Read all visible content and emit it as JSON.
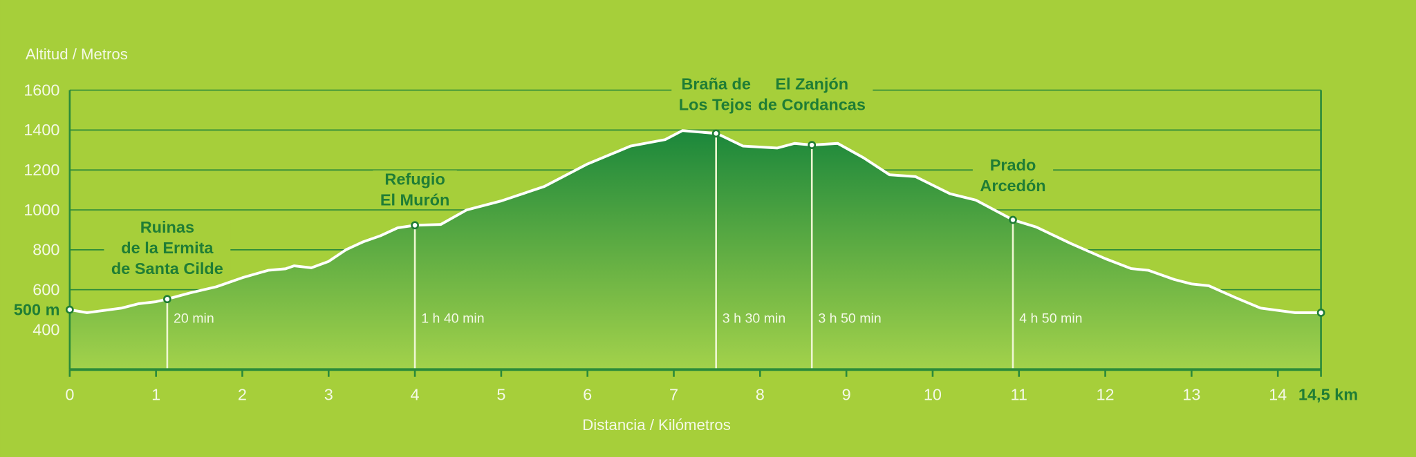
{
  "chart_data": {
    "type": "area",
    "y_axis_title": "Altitud / Metros",
    "x_axis_title": "Distancia / Kilómetros",
    "x": [
      0,
      0.2,
      0.6,
      0.8,
      1.0,
      1.13,
      1.4,
      1.7,
      2.0,
      2.3,
      2.5,
      2.6,
      2.8,
      3.0,
      3.2,
      3.4,
      3.6,
      3.8,
      4.0,
      4.3,
      4.6,
      5.0,
      5.5,
      6.0,
      6.3,
      6.5,
      6.9,
      7.1,
      7.5,
      7.8,
      8.2,
      8.4,
      8.6,
      8.9,
      9.2,
      9.5,
      9.8,
      10.2,
      10.5,
      10.93,
      11.2,
      11.6,
      12.0,
      12.3,
      12.5,
      12.8,
      13.0,
      13.2,
      13.5,
      13.8,
      14.2,
      14.5
    ],
    "values": [
      500,
      485,
      508,
      530,
      540,
      553,
      585,
      615,
      660,
      697,
      705,
      720,
      710,
      742,
      800,
      840,
      870,
      910,
      923,
      927,
      1000,
      1045,
      1117,
      1230,
      1284,
      1320,
      1352,
      1397,
      1383,
      1320,
      1310,
      1333,
      1325,
      1333,
      1261,
      1176,
      1167,
      1081,
      1049,
      950,
      914,
      832,
      756,
      706,
      697,
      651,
      629,
      620,
      562,
      508,
      485,
      485
    ],
    "line_color": "#ffffff",
    "fill_top_color": "#1b873b",
    "fill_bottom_color": "#a3d24b",
    "xlim": [
      0,
      14.5
    ],
    "xticks": [
      0,
      1,
      2,
      3,
      4,
      5,
      6,
      7,
      8,
      9,
      10,
      11,
      12,
      13,
      14,
      {
        "value": 14.5,
        "label": "14,5 km"
      }
    ],
    "ylim": [
      200,
      1600
    ],
    "yticks": [
      400,
      {
        "value": 500,
        "label": "500 m"
      },
      600,
      800,
      1000,
      1200,
      1400,
      1600
    ],
    "grid": true,
    "waypoints": [
      {
        "x": 1.13,
        "y": 553,
        "label": [
          "Ruinas",
          "de la Ermita",
          "de Santa Cilde"
        ],
        "time": "20 min"
      },
      {
        "x": 4.0,
        "y": 923,
        "label": [
          "Refugio",
          "El Murón"
        ],
        "time": "1 h 40 min"
      },
      {
        "x": 7.49,
        "y": 1383,
        "label": [
          "Braña de",
          "Los Tejos"
        ],
        "time": "3 h 30 min"
      },
      {
        "x": 8.6,
        "y": 1325,
        "label": [
          "El Zanjón",
          "de Cordancas"
        ],
        "time": "3 h 50 min"
      },
      {
        "x": 10.93,
        "y": 950,
        "label": [
          "Prado",
          "Arcedón"
        ],
        "time": "4 h 50 min"
      }
    ]
  }
}
